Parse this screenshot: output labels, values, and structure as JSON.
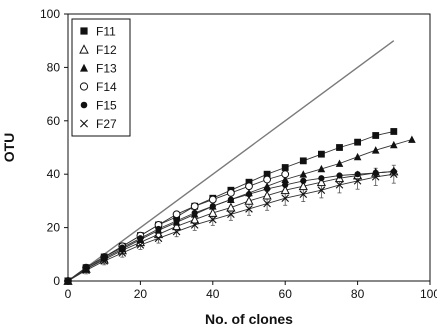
{
  "chart_data": {
    "type": "scatter",
    "xlabel": "No. of clones",
    "ylabel": "OTU",
    "xlim": [
      0,
      100
    ],
    "ylim": [
      0,
      100
    ],
    "xticks": [
      "0",
      "20",
      "40",
      "60",
      "80",
      "100"
    ],
    "yticks": [
      "0",
      "20",
      "40",
      "60",
      "80",
      "100"
    ],
    "grid": false,
    "legend_position": "top-left",
    "reference_line": {
      "x": [
        0,
        90
      ],
      "y": [
        0,
        90
      ],
      "color": "#7a7a7a"
    },
    "series": [
      {
        "name": "F11",
        "marker": "filled-square",
        "x": [
          0,
          5,
          10,
          15,
          20,
          25,
          30,
          35,
          40,
          45,
          50,
          55,
          60,
          65,
          70,
          75,
          80,
          85,
          90
        ],
        "y": [
          0,
          5,
          9,
          13,
          17,
          21,
          24,
          28,
          31,
          34,
          37,
          40,
          42.5,
          45,
          47.5,
          50,
          52,
          54.5,
          56
        ]
      },
      {
        "name": "F12",
        "marker": "open-triangle",
        "x": [
          0,
          5,
          10,
          15,
          20,
          25,
          30,
          35,
          40,
          45,
          50,
          55,
          60,
          65,
          70,
          75,
          80,
          85,
          90
        ],
        "y": [
          0,
          4.5,
          8,
          11.5,
          14.5,
          17.5,
          20.5,
          23,
          25.5,
          27.5,
          30,
          32,
          34,
          35.5,
          37,
          38.5,
          39.5,
          40.5,
          41
        ]
      },
      {
        "name": "F13",
        "marker": "filled-triangle",
        "x": [
          0,
          5,
          10,
          15,
          20,
          25,
          30,
          35,
          40,
          45,
          50,
          55,
          60,
          65,
          70,
          75,
          80,
          85,
          90,
          95
        ],
        "y": [
          0,
          4.5,
          8.5,
          12,
          15.5,
          19,
          22,
          25,
          28,
          30.5,
          33,
          35.5,
          38,
          40,
          42,
          44,
          46.5,
          49,
          51,
          53
        ]
      },
      {
        "name": "F14",
        "marker": "open-circle",
        "x": [
          0,
          5,
          10,
          15,
          20,
          25,
          30,
          35,
          40,
          45,
          50,
          55,
          60
        ],
        "y": [
          0,
          5,
          9,
          13,
          17,
          21,
          25,
          28,
          30.5,
          33,
          35.5,
          38,
          40
        ]
      },
      {
        "name": "F15",
        "marker": "filled-circle",
        "x": [
          0,
          5,
          10,
          15,
          20,
          25,
          30,
          35,
          40,
          45,
          50,
          55,
          60,
          65,
          70,
          75,
          80,
          85,
          90
        ],
        "y": [
          0,
          5,
          9,
          12.5,
          16,
          19.5,
          22.5,
          25.5,
          28,
          30.5,
          32.5,
          34.5,
          36,
          37.5,
          38.5,
          39.5,
          40,
          40.5,
          41
        ]
      },
      {
        "name": "F27",
        "marker": "cross",
        "x": [
          0,
          5,
          10,
          15,
          20,
          25,
          30,
          35,
          40,
          45,
          50,
          55,
          60,
          65,
          70,
          75,
          80,
          85,
          90
        ],
        "y": [
          0,
          4,
          7.5,
          10.5,
          13.5,
          16,
          18.5,
          21,
          23,
          25,
          27,
          29,
          31,
          32.5,
          34,
          36,
          37.5,
          39,
          40
        ]
      }
    ]
  }
}
